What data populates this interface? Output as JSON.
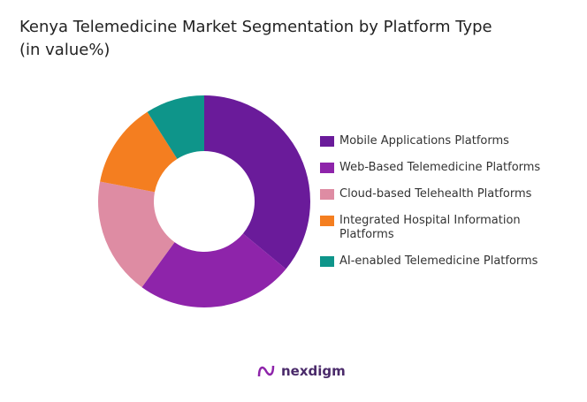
{
  "chart_data": {
    "type": "donut",
    "title": "Kenya Telemedicine Market Segmentation by Platform Type (in value%)",
    "categories": [
      "Mobile Applications Platforms",
      "Web-Based Telemedicine Platforms",
      "Cloud-based Telehealth Platforms",
      "Integrated Hospital Information Platforms",
      "AI-enabled Telemedicine Platforms"
    ],
    "values": [
      36,
      24,
      18,
      13,
      9
    ],
    "colors": [
      "#6a1b9a",
      "#8e24aa",
      "#de8ca3",
      "#f47e20",
      "#0e958a"
    ],
    "legend": "right"
  },
  "logo": "nexdigm"
}
